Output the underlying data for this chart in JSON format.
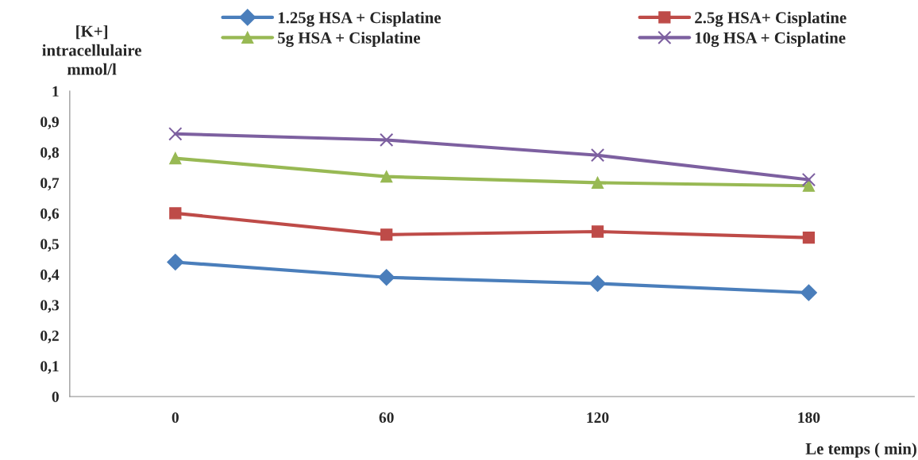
{
  "chart_data": {
    "type": "line",
    "ylabel": "[K+]\nintracellulaire\nmmol/l",
    "xlabel": "Le temps ( min)",
    "categories": [
      "0",
      "60",
      "120",
      "180"
    ],
    "series": [
      {
        "name": "1.25g HSA + Cisplatine",
        "color": "#4a7ebb",
        "marker": "diamond",
        "values": [
          0.44,
          0.39,
          0.37,
          0.34
        ]
      },
      {
        "name": "2.5g HSA+ Cisplatine",
        "color": "#be4b48",
        "marker": "square",
        "values": [
          0.6,
          0.53,
          0.54,
          0.52
        ]
      },
      {
        "name": "5g HSA + Cisplatine",
        "color": "#98b954",
        "marker": "triangle",
        "values": [
          0.78,
          0.72,
          0.7,
          0.69
        ]
      },
      {
        "name": "10g HSA + Cisplatine",
        "color": "#7d60a0",
        "marker": "cross",
        "values": [
          0.86,
          0.84,
          0.79,
          0.71
        ]
      }
    ],
    "ylim": [
      0,
      1
    ],
    "yticks": [
      0,
      {
        "value": 0.1,
        "label": "0,1"
      },
      {
        "value": 0.2,
        "label": "0,2"
      },
      {
        "value": 0.3,
        "label": "0,3"
      },
      {
        "value": 0.4,
        "label": "0,4"
      },
      {
        "value": 0.5,
        "label": "0,5"
      },
      {
        "value": 0.6,
        "label": "0,6"
      },
      {
        "value": 0.7,
        "label": "0,7"
      },
      {
        "value": 0.8,
        "label": "0,8"
      },
      {
        "value": 0.9,
        "label": "0,9"
      },
      1
    ],
    "grid": false,
    "legend": "top",
    "line_style": "solid"
  }
}
